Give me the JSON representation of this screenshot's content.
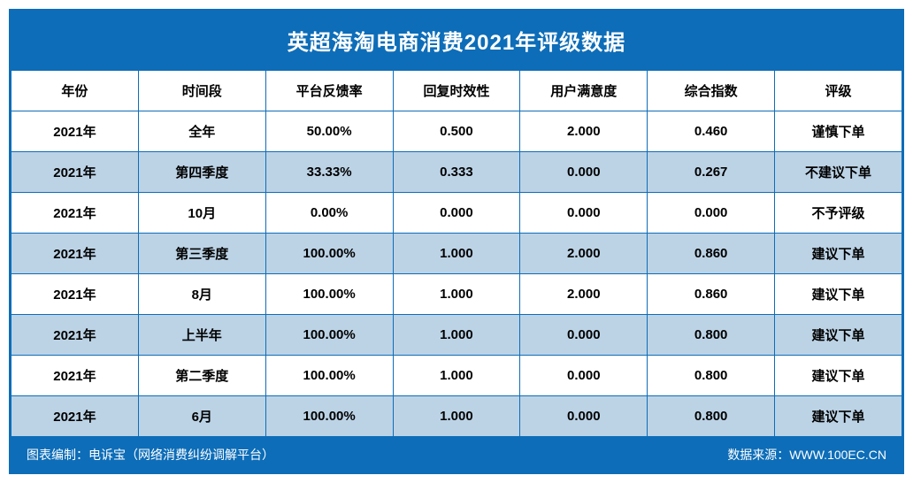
{
  "title": "英超海淘电商消费2021年评级数据",
  "colors": {
    "primary": "#0d6db8",
    "alt_row": "#bcd3e6",
    "white": "#ffffff",
    "text": "#000000"
  },
  "table": {
    "columns": [
      "年份",
      "时间段",
      "平台反馈率",
      "回复时效性",
      "用户满意度",
      "综合指数",
      "评级"
    ],
    "rows": [
      [
        "2021年",
        "全年",
        "50.00%",
        "0.500",
        "2.000",
        "0.460",
        "谨慎下单"
      ],
      [
        "2021年",
        "第四季度",
        "33.33%",
        "0.333",
        "0.000",
        "0.267",
        "不建议下单"
      ],
      [
        "2021年",
        "10月",
        "0.00%",
        "0.000",
        "0.000",
        "0.000",
        "不予评级"
      ],
      [
        "2021年",
        "第三季度",
        "100.00%",
        "1.000",
        "2.000",
        "0.860",
        "建议下单"
      ],
      [
        "2021年",
        "8月",
        "100.00%",
        "1.000",
        "2.000",
        "0.860",
        "建议下单"
      ],
      [
        "2021年",
        "上半年",
        "100.00%",
        "1.000",
        "0.000",
        "0.800",
        "建议下单"
      ],
      [
        "2021年",
        "第二季度",
        "100.00%",
        "1.000",
        "0.000",
        "0.800",
        "建议下单"
      ],
      [
        "2021年",
        "6月",
        "100.00%",
        "1.000",
        "0.000",
        "0.800",
        "建议下单"
      ]
    ],
    "row_alternate_start": "white"
  },
  "footer": {
    "left": "图表编制：电诉宝（网络消费纠纷调解平台）",
    "right": "数据来源：WWW.100EC.CN"
  }
}
